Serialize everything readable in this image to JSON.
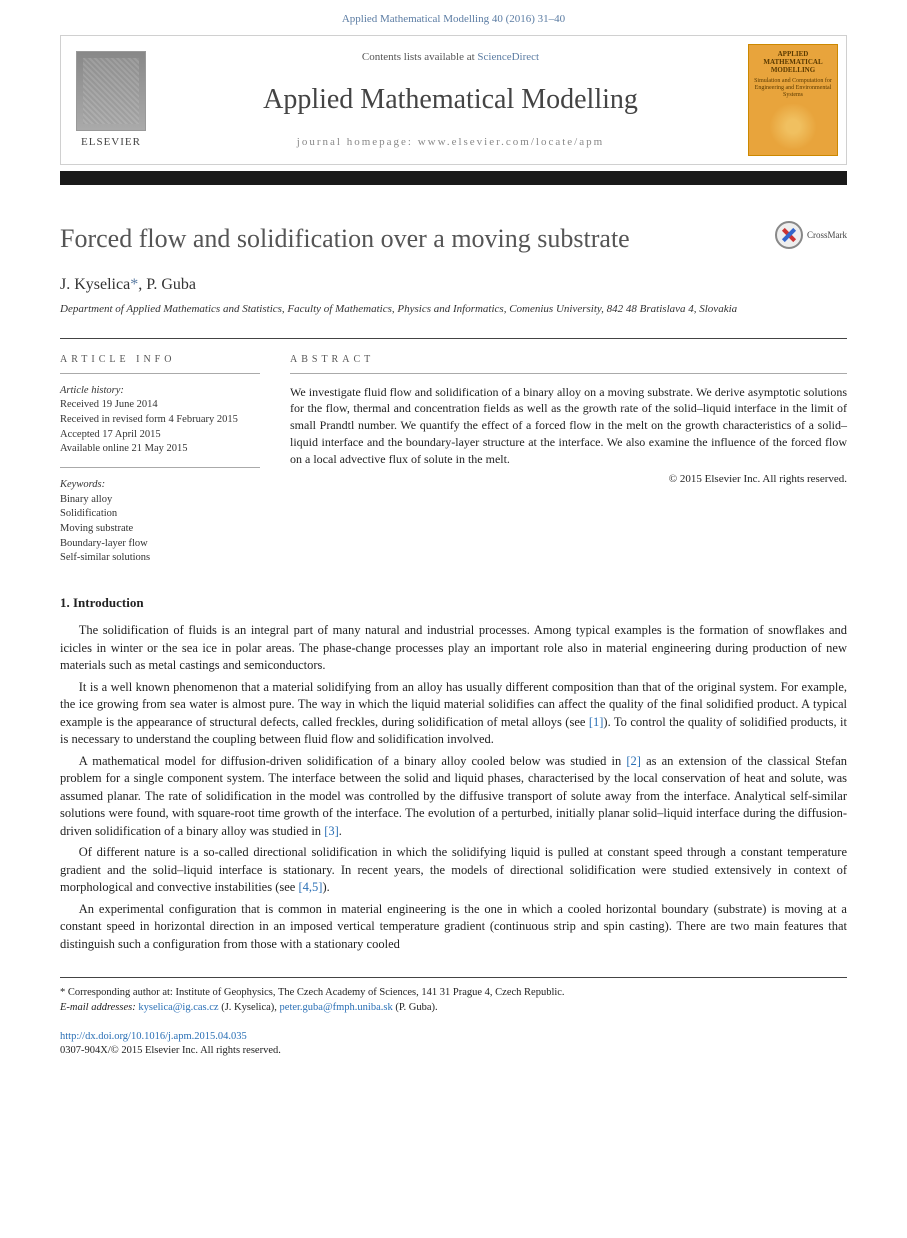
{
  "citation": "Applied Mathematical Modelling 40 (2016) 31–40",
  "masthead": {
    "contents_prefix": "Contents lists available at ",
    "contents_link": "ScienceDirect",
    "journal_name": "Applied Mathematical Modelling",
    "homepage_label": "journal homepage: www.elsevier.com/locate/apm",
    "publisher": "ELSEVIER",
    "thumb_title": "APPLIED MATHEMATICAL MODELLING",
    "thumb_sub": "Simulation and Computation for Engineering and Environmental Systems"
  },
  "crossmark_label": "CrossMark",
  "title": "Forced flow and solidification over a moving substrate",
  "authors_html": "J. Kyselica <span class='corr'>*</span>, P. Guba",
  "author1": "J. Kyselica",
  "author_corr": "*",
  "author2": ", P. Guba",
  "affiliation": "Department of Applied Mathematics and Statistics, Faculty of Mathematics, Physics and Informatics, Comenius University, 842 48 Bratislava 4, Slovakia",
  "info": {
    "heading": "ARTICLE INFO",
    "history_label": "Article history:",
    "received": "Received 19 June 2014",
    "revised": "Received in revised form 4 February 2015",
    "accepted": "Accepted 17 April 2015",
    "online": "Available online 21 May 2015",
    "keywords_label": "Keywords:",
    "keywords": [
      "Binary alloy",
      "Solidification",
      "Moving substrate",
      "Boundary-layer flow",
      "Self-similar solutions"
    ]
  },
  "abstract": {
    "heading": "ABSTRACT",
    "text": "We investigate fluid flow and solidification of a binary alloy on a moving substrate. We derive asymptotic solutions for the flow, thermal and concentration fields as well as the growth rate of the solid–liquid interface in the limit of small Prandtl number. We quantify the effect of a forced flow in the melt on the growth characteristics of a solid–liquid interface and the boundary-layer structure at the interface. We also examine the influence of the forced flow on a local advective flux of solute in the melt.",
    "copyright": "© 2015 Elsevier Inc. All rights reserved."
  },
  "section1": {
    "heading": "1. Introduction",
    "p1": "The solidification of fluids is an integral part of many natural and industrial processes. Among typical examples is the formation of snowflakes and icicles in winter or the sea ice in polar areas. The phase-change processes play an important role also in material engineering during production of new materials such as metal castings and semiconductors.",
    "p2a": "It is a well known phenomenon that a material solidifying from an alloy has usually different composition than that of the original system. For example, the ice growing from sea water is almost pure. The way in which the liquid material solidifies can affect the quality of the final solidified product. A typical example is the appearance of structural defects, called freckles, during solidification of metal alloys (see ",
    "ref1": "[1]",
    "p2b": "). To control the quality of solidified products, it is necessary to understand the coupling between fluid flow and solidification involved.",
    "p3a": "A mathematical model for diffusion-driven solidification of a binary alloy cooled below was studied in ",
    "ref2": "[2]",
    "p3b": " as an extension of the classical Stefan problem for a single component system. The interface between the solid and liquid phases, characterised by the local conservation of heat and solute, was assumed planar. The rate of solidification in the model was controlled by the diffusive transport of solute away from the interface. Analytical self-similar solutions were found, with square-root time growth of the interface. The evolution of a perturbed, initially planar solid–liquid interface during the diffusion-driven solidification of a binary alloy was studied in ",
    "ref3": "[3]",
    "p3c": ".",
    "p4a": "Of different nature is a so-called directional solidification in which the solidifying liquid is pulled at constant speed through a constant temperature gradient and the solid–liquid interface is stationary. In recent years, the models of directional solidification were studied extensively in context of morphological and convective instabilities (see ",
    "ref45": "[4,5]",
    "p4b": ").",
    "p5": "An experimental configuration that is common in material engineering is the one in which a cooled horizontal boundary (substrate) is moving at a constant speed in horizontal direction in an imposed vertical temperature gradient (continuous strip and spin casting). There are two main features that distinguish such a configuration from those with a stationary cooled"
  },
  "footer": {
    "corr_label": "* Corresponding author at: Institute of Geophysics, The Czech Academy of Sciences, 141 31 Prague 4, Czech Republic.",
    "email_label": "E-mail addresses: ",
    "email1": "kyselica@ig.cas.cz",
    "email1_name": " (J. Kyselica), ",
    "email2": "peter.guba@fmph.uniba.sk",
    "email2_name": " (P. Guba).",
    "doi": "http://dx.doi.org/10.1016/j.apm.2015.04.035",
    "issn_line": "0307-904X/© 2015 Elsevier Inc. All rights reserved."
  }
}
